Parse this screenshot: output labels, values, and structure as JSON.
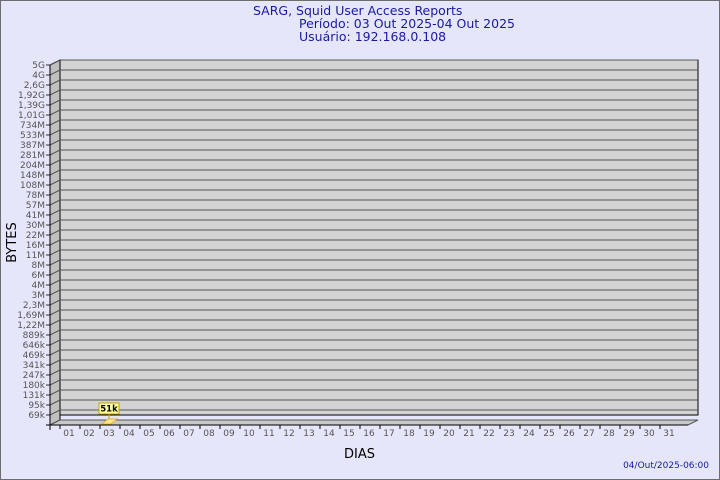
{
  "title": {
    "line1": "SARG, Squid User Access Reports",
    "line2": "Período: 03 Out 2025-04 Out 2025",
    "line3": "Usuário: 192.168.0.108"
  },
  "timestamp": "04/Out/2025-06:00",
  "colors": {
    "background": "#e6e6fa",
    "wall": "#d3d3d3",
    "bar": "#ffe88c",
    "title": "#1a1aa0"
  },
  "chart_data": {
    "type": "bar",
    "xlabel": "DIAS",
    "ylabel": "BYTES",
    "grid": true,
    "y_scale": "log",
    "y_ticks": [
      "5G",
      "4G",
      "2,6G",
      "1,92G",
      "1,39G",
      "1,01G",
      "734M",
      "533M",
      "387M",
      "281M",
      "204M",
      "148M",
      "108M",
      "78M",
      "57M",
      "41M",
      "30M",
      "22M",
      "16M",
      "11M",
      "8M",
      "6M",
      "4M",
      "3M",
      "2,3M",
      "1,69M",
      "1,22M",
      "889k",
      "646k",
      "469k",
      "341k",
      "247k",
      "180k",
      "131k",
      "95k",
      "69k"
    ],
    "categories": [
      "01",
      "02",
      "03",
      "04",
      "05",
      "06",
      "07",
      "08",
      "09",
      "10",
      "11",
      "12",
      "13",
      "14",
      "15",
      "16",
      "17",
      "18",
      "19",
      "20",
      "21",
      "22",
      "23",
      "24",
      "25",
      "26",
      "27",
      "28",
      "29",
      "30",
      "31"
    ],
    "series": [
      {
        "points": [
          {
            "x": "03",
            "value": 51000,
            "label": "51k"
          }
        ]
      }
    ]
  }
}
